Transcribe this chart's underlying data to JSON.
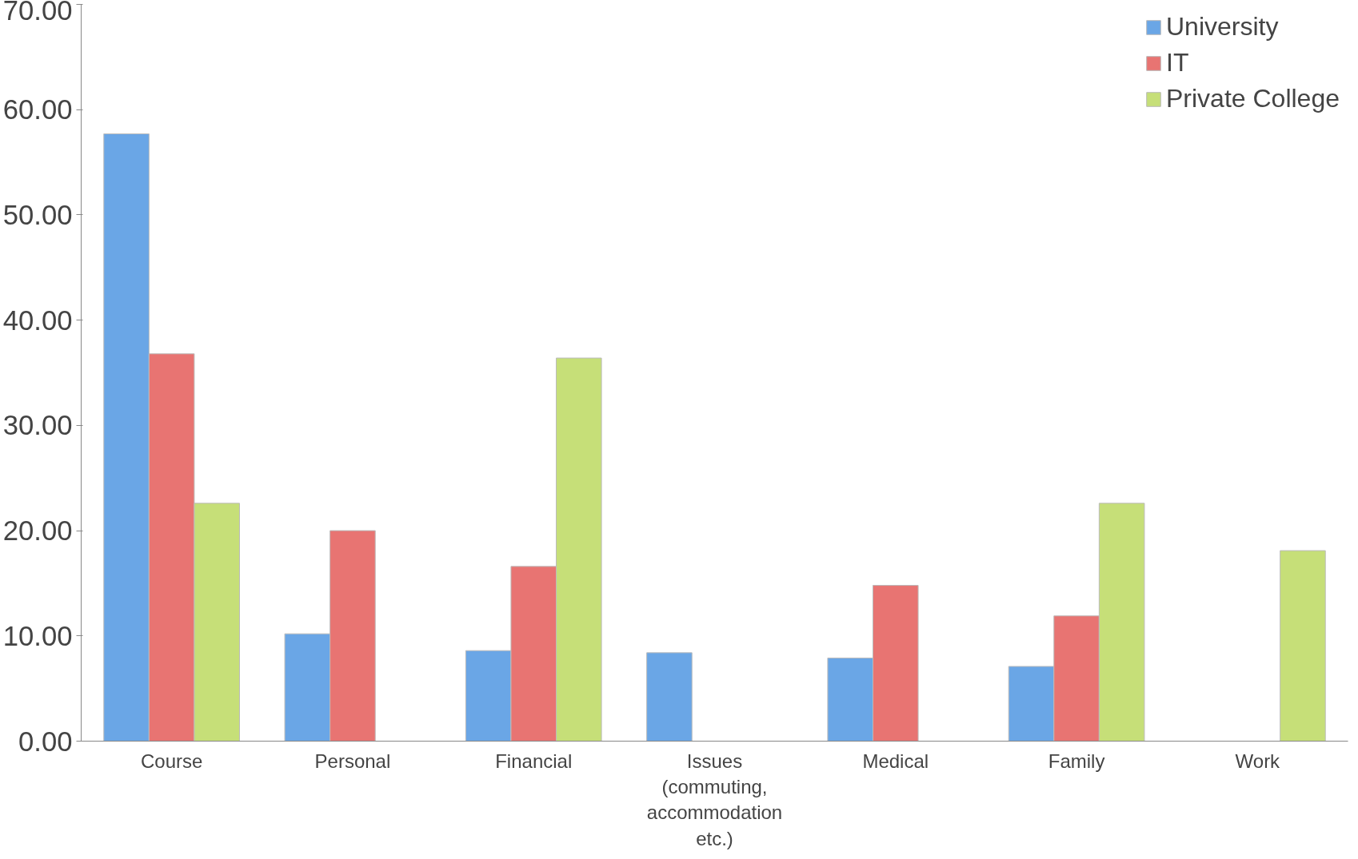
{
  "chart_data": {
    "type": "bar",
    "categories": [
      "Course",
      "Personal",
      "Financial",
      "Issues (commuting, accommodation etc.)",
      "Medical",
      "Family",
      "Work"
    ],
    "series": [
      {
        "name": "University",
        "color": "#6aa6e6",
        "values": [
          57.7,
          10.2,
          8.6,
          8.4,
          7.9,
          7.1,
          null
        ]
      },
      {
        "name": "IT",
        "color": "#e87472",
        "values": [
          36.8,
          20.0,
          16.6,
          null,
          14.8,
          11.9,
          null
        ]
      },
      {
        "name": "Private College",
        "color": "#c6df78",
        "values": [
          22.6,
          null,
          36.4,
          null,
          null,
          22.6,
          18.1
        ]
      }
    ],
    "ylim": [
      0,
      70
    ],
    "yticks": [
      {
        "value": 0,
        "label": "0.00"
      },
      {
        "value": 10,
        "label": "10.00"
      },
      {
        "value": 20,
        "label": "20.00"
      },
      {
        "value": 30,
        "label": "30.00"
      },
      {
        "value": 40,
        "label": "40.00"
      },
      {
        "value": 50,
        "label": "50.00"
      },
      {
        "value": 60,
        "label": "60.00"
      },
      {
        "value": 70,
        "label": "70.00"
      }
    ],
    "grid": false,
    "legend": "top right"
  }
}
